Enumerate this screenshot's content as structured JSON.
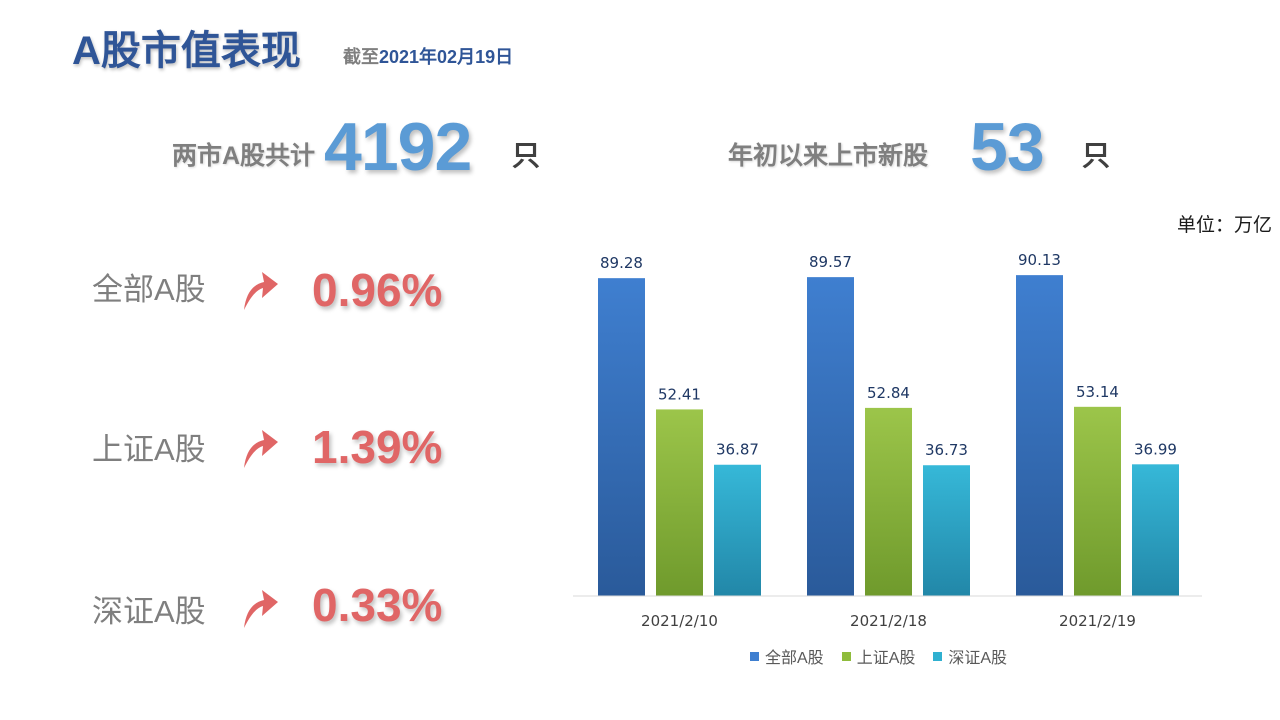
{
  "header": {
    "title": "A股市值表现",
    "subtitle_prefix": "截至",
    "subtitle_date": "2021年02月19日"
  },
  "stats": {
    "total_label": "两市A股共计",
    "total_value": "4192",
    "total_unit": "只",
    "new_label": "年初以来上市新股",
    "new_value": "53",
    "new_unit": "只"
  },
  "unit_note": "单位：万亿",
  "changes": [
    {
      "label": "全部A股",
      "pct": "0.96%",
      "direction": "up"
    },
    {
      "label": "上证A股",
      "pct": "1.39%",
      "direction": "up"
    },
    {
      "label": "深证A股",
      "pct": "0.33%",
      "direction": "up"
    }
  ],
  "colors": {
    "title": "#2f5597",
    "stat_number": "#5b9bd5",
    "up_arrow": "#e06666",
    "series_all": "#3f7fd0",
    "series_sh": "#8fbc3c",
    "series_sz": "#2fb0d0"
  },
  "chart_data": {
    "type": "bar",
    "categories": [
      "2021/2/10",
      "2021/2/18",
      "2021/2/19"
    ],
    "series": [
      {
        "name": "全部A股",
        "values": [
          89.28,
          89.57,
          90.13
        ],
        "color": "#3f7fd0"
      },
      {
        "name": "上证A股",
        "values": [
          52.41,
          52.84,
          53.14
        ],
        "color": "#8fbc3c"
      },
      {
        "name": "深证A股",
        "values": [
          36.87,
          36.73,
          36.99
        ],
        "color": "#2fb0d0"
      }
    ],
    "ylim": [
      0,
      100
    ],
    "grid": false,
    "legend": "bottom"
  }
}
